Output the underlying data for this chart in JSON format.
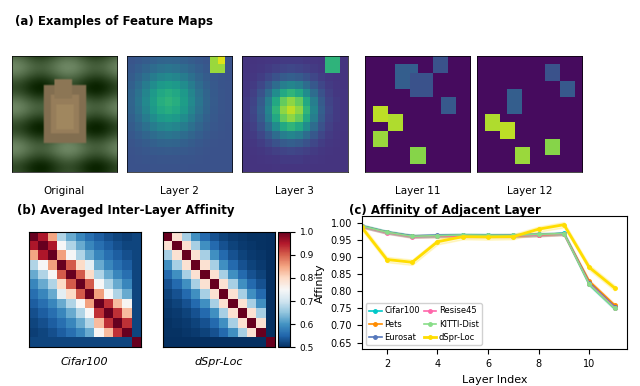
{
  "title_a": "(a) Examples of Feature Maps",
  "title_b": "(b) Averaged Inter-Layer Affinity",
  "title_c": "(c) Affinity of Adjacent Layer",
  "panel_a_labels": [
    "Original",
    "Layer 2",
    "Layer 3",
    "Layer 11",
    "Layer 12"
  ],
  "xlabel_c": "Layer Index",
  "ylabel_c": "Affinity",
  "yticks_c": [
    0.65,
    0.7,
    0.75,
    0.8,
    0.85,
    0.9,
    0.95,
    1.0
  ],
  "xticks_c": [
    2,
    4,
    6,
    8,
    10
  ],
  "ylim_c": [
    0.63,
    1.02
  ],
  "xlim_c": [
    1,
    11.5
  ],
  "colorbar_ticks": [
    0.5,
    0.6,
    0.7,
    0.8,
    0.9,
    1.0
  ],
  "heatmap_label_1": "Cifar100",
  "heatmap_label_2": "dSpr-Loc",
  "legend_entries": [
    "Cifar100",
    "Pets",
    "Eurosat",
    "Resise45",
    "KITTI-Dist",
    "dSpr-Loc"
  ],
  "line_colors": [
    "#00c8c8",
    "#ff8c00",
    "#5577bb",
    "#ff66aa",
    "#88dd88",
    "#ffdd00"
  ],
  "line_data": {
    "Cifar100": [
      0.992,
      0.974,
      0.962,
      0.963,
      0.965,
      0.964,
      0.963,
      0.965,
      0.97,
      0.82,
      0.75
    ],
    "Pets": [
      0.991,
      0.973,
      0.961,
      0.962,
      0.962,
      0.963,
      0.962,
      0.965,
      0.968,
      0.83,
      0.76
    ],
    "Eurosat": [
      0.991,
      0.973,
      0.962,
      0.964,
      0.965,
      0.964,
      0.965,
      0.967,
      0.969,
      0.825,
      0.755
    ],
    "Resise45": [
      0.99,
      0.972,
      0.96,
      0.962,
      0.962,
      0.962,
      0.962,
      0.965,
      0.968,
      0.822,
      0.752
    ],
    "KITTI-Dist": [
      0.991,
      0.973,
      0.961,
      0.963,
      0.965,
      0.964,
      0.964,
      0.967,
      0.969,
      0.82,
      0.75
    ],
    "dSpr-Loc": [
      0.988,
      0.893,
      0.885,
      0.945,
      0.96,
      0.959,
      0.96,
      0.982,
      0.995,
      0.87,
      0.81
    ]
  },
  "x_values": [
    1,
    2,
    3,
    4,
    5,
    6,
    7,
    8,
    9,
    10,
    11
  ],
  "border_color_a": "#4488ff",
  "border_color_b": "#44aa44",
  "border_color_c": "#ff8c00"
}
